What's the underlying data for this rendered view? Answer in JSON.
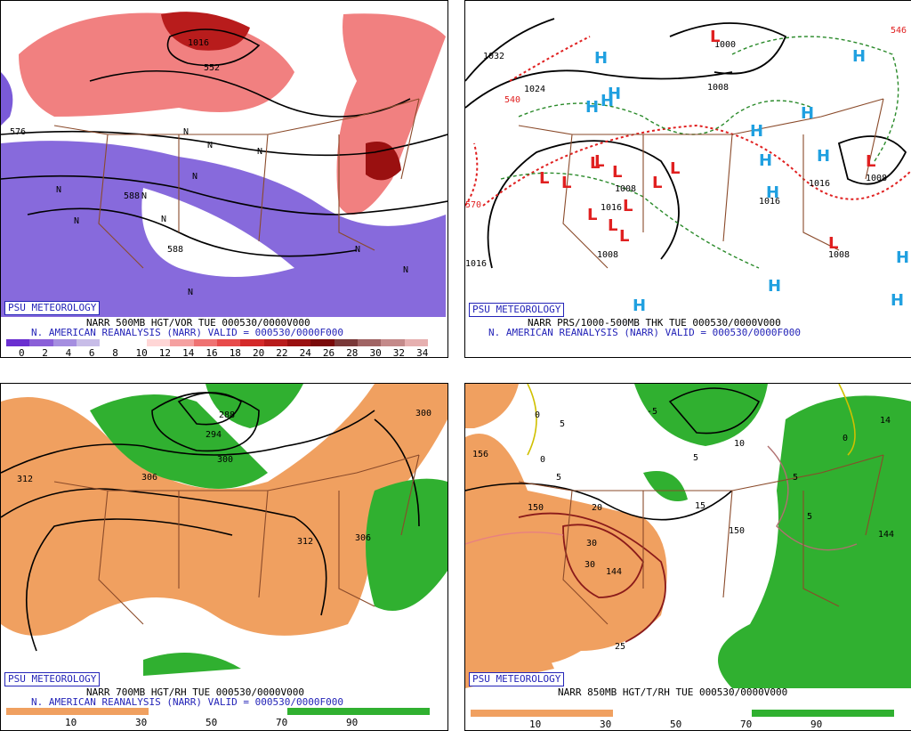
{
  "panels": [
    {
      "id": "p500",
      "badge": "PSU METEOROLOGY",
      "title": "NARR 500MB HGT/VOR TUE 000530/0000V000",
      "subtitle": "N. AMERICAN REANALYSIS (NARR) VALID = 000530/0000F000",
      "colorbar_ticks": [
        "0",
        "2",
        "4",
        "6",
        "8",
        "10",
        "12",
        "14",
        "16",
        "18",
        "20",
        "22",
        "24",
        "26",
        "28",
        "30",
        "32",
        "34"
      ],
      "colorbar_colors": [
        "#6a2fd0",
        "#8a5fd8",
        "#a58ee0",
        "#c8bde8",
        "#ffffff",
        "#ffffff",
        "#ffd6d6",
        "#f5a0a0",
        "#ef7272",
        "#e84a4a",
        "#d42a2a",
        "#b81c1c",
        "#9a1010",
        "#7a0a0a",
        "#7a3a3a",
        "#a06464",
        "#c48a8a",
        "#e6b0b0"
      ],
      "contour_labels": [
        "576",
        "588",
        "588",
        "552",
        "1016"
      ],
      "low_marks": [
        "N",
        "N",
        "N",
        "N",
        "N",
        "N",
        "N",
        "N",
        "N",
        "N",
        "N"
      ]
    },
    {
      "id": "pprs",
      "badge": "PSU METEOROLOGY",
      "title": "NARR PRS/1000-500MB THK TUE 000530/0000V000",
      "subtitle": "N. AMERICAN REANALYSIS (NARR) VALID = 000530/0000F000",
      "contour_labels": [
        "1032",
        "1024",
        "1016",
        "1008",
        "1008",
        "1008",
        "1016",
        "1016",
        "1016",
        "1008",
        "1008",
        "1000",
        "540",
        "570",
        "546"
      ],
      "highs": [
        "H",
        "H",
        "H",
        "H",
        "H",
        "H",
        "H",
        "H",
        "H",
        "H",
        "H",
        "H",
        "H",
        "H"
      ],
      "lows": [
        "L",
        "L",
        "L",
        "L",
        "L",
        "L",
        "L",
        "L",
        "L",
        "L",
        "L",
        "L",
        "L",
        "L"
      ]
    },
    {
      "id": "p700",
      "badge": "PSU METEOROLOGY",
      "title": "NARR 700MB HGT/RH TUE 000530/0000V000",
      "subtitle": "N. AMERICAN REANALYSIS (NARR) VALID = 000530/0000F000",
      "colorbar_ticks": [
        "10",
        "30",
        "50",
        "70",
        "90"
      ],
      "contour_labels": [
        "288",
        "294",
        "300",
        "306",
        "312",
        "312",
        "300",
        "306"
      ]
    },
    {
      "id": "p850",
      "badge": "PSU METEOROLOGY",
      "title": "NARR 850MB HGT/T/RH TUE 000530/0000V000",
      "colorbar_ticks": [
        "10",
        "30",
        "50",
        "70",
        "90"
      ],
      "contour_labels": [
        "156",
        "150",
        "144",
        "150",
        "144",
        "30",
        "30",
        "20",
        "-5",
        "25",
        "10",
        "15",
        "5",
        "5",
        "5",
        "5",
        "5",
        "0",
        "0",
        "0",
        "14"
      ]
    }
  ],
  "colors": {
    "orange_dry": "#f0a060",
    "green_moist": "#30b030",
    "purple_vor": "#7a5ad8",
    "red_vor": "#d83030",
    "state_lines": "#8a4a2a",
    "label_blue": "#2424b8",
    "high_color": "#20a0e0",
    "low_color": "#e02020"
  }
}
